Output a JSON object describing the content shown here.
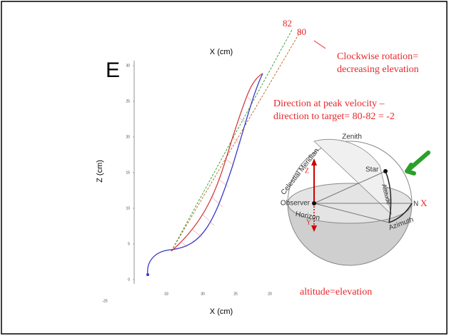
{
  "panel": {
    "letter": "E",
    "x_label_top": "X (cm)",
    "y_label": "Z (cm)",
    "x_label_bottom": "X (cm)",
    "y_tick_labels": [
      "30",
      "25",
      "20",
      "15",
      "10",
      "5",
      "0"
    ],
    "x_tick_labels": [
      "-25",
      "33",
      "30",
      "25",
      "20"
    ]
  },
  "annotations": {
    "angle_1": "82",
    "angle_2": "80",
    "rotation_1": "Clockwise rotation=",
    "rotation_2": "decreasing elevation",
    "direction_1": "Direction at peak velocity –",
    "direction_2": "direction to target= 80-82 = -2",
    "footer": "altitude=elevation"
  },
  "sphere": {
    "zenith": "Zenith",
    "meridian": "Celestial Meridian",
    "star": "Star",
    "z_axis": "Z",
    "altitude": "Altitude",
    "observer": "Observer",
    "north": "N",
    "x_axis": "X",
    "horizon": "Horizon",
    "y_axis": "Y",
    "azimuth": "Azimuth"
  }
}
